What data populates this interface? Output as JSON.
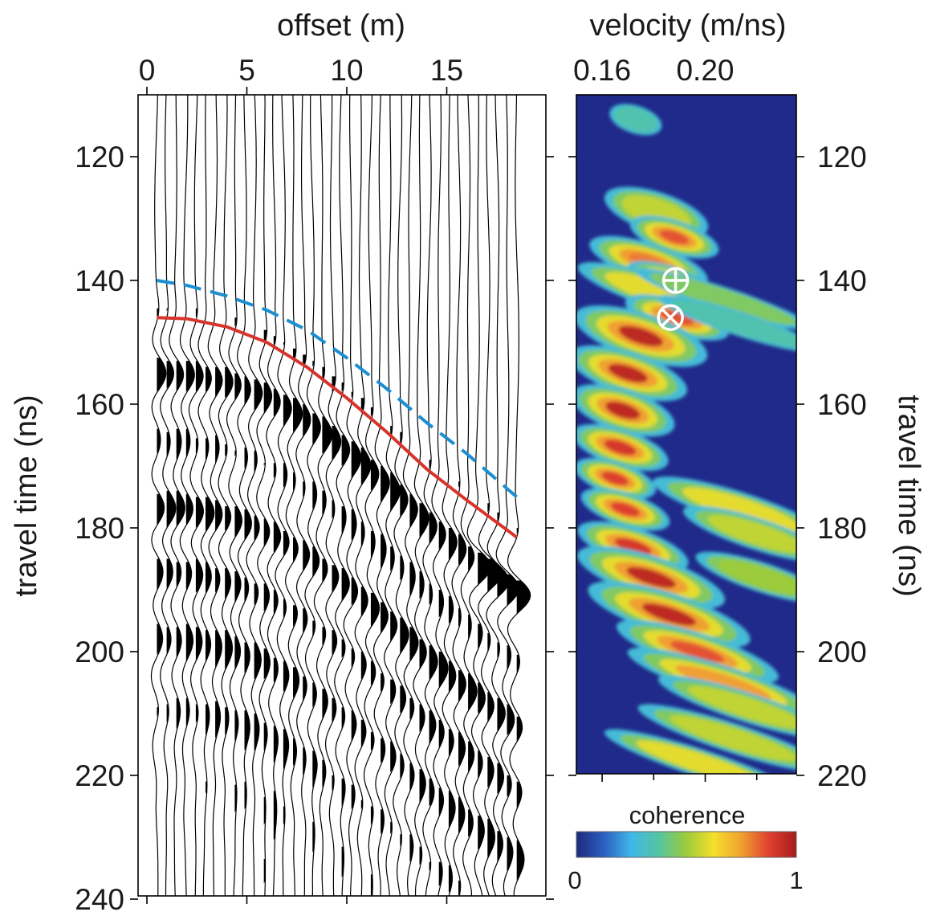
{
  "chart_data": [
    {
      "type": "line",
      "subtype": "wiggle-seismogram",
      "xlabel": "offset (m)",
      "ylabel": "travel time (ns)",
      "xlim": [
        0,
        20
      ],
      "ylim": [
        110,
        240
      ],
      "y_inverted": true,
      "x_ticks": [
        0,
        5,
        10,
        15
      ],
      "y_ticks": [
        120,
        140,
        160,
        180,
        200,
        220,
        240
      ],
      "trace_count": 38,
      "trace_offset_range": [
        0.5,
        18.5
      ],
      "positive_fill": "black",
      "series": [
        {
          "name": "",
          "color": "#d6342c",
          "dash": "solid",
          "x": [
            0.5,
            2,
            4,
            6,
            8,
            10,
            12,
            14,
            16,
            18.5
          ],
          "y": [
            146,
            146.2,
            147.5,
            150,
            154,
            159,
            164.5,
            170.5,
            175.5,
            181.5
          ]
        },
        {
          "name": "",
          "color": "#1c8fd1",
          "dash": "dashed",
          "x": [
            0.5,
            2,
            4,
            6,
            8,
            10,
            12,
            14,
            16,
            18.5
          ],
          "y": [
            140,
            140.8,
            142.5,
            144.8,
            148,
            152.5,
            157.5,
            163,
            168,
            175
          ]
        }
      ]
    },
    {
      "type": "heatmap",
      "xlabel": "velocity (m/ns)",
      "ylabel": "travel time (ns)",
      "xlim": [
        0.15,
        0.235
      ],
      "ylim": [
        110,
        220
      ],
      "y_inverted": true,
      "x_ticks": [
        0.16,
        0.2
      ],
      "x_tick_labels": [
        "0.16",
        "0.20"
      ],
      "y_ticks": [
        120,
        140,
        160,
        180,
        200,
        220
      ],
      "colorbar": {
        "label": "coherence",
        "min": "0",
        "max": "1",
        "colors": [
          "#1c2a7d",
          "#2c5fc0",
          "#3fb8e8",
          "#55c4a0",
          "#9ccc3a",
          "#f5e02a",
          "#f0a030",
          "#e04030",
          "#a51c1c"
        ]
      },
      "background": "#1f2a8a",
      "blobs": [
        {
          "t": 114,
          "v": 0.173,
          "w": 0.007,
          "h": 1.5,
          "c": 0.35
        },
        {
          "t": 129,
          "v": 0.181,
          "w": 0.014,
          "h": 2.2,
          "c": 0.55
        },
        {
          "t": 133,
          "v": 0.188,
          "w": 0.012,
          "h": 1.8,
          "c": 0.85
        },
        {
          "t": 137,
          "v": 0.178,
          "w": 0.016,
          "h": 2.0,
          "c": 0.8
        },
        {
          "t": 140,
          "v": 0.187,
          "w": 0.012,
          "h": 1.5,
          "c": 0.8
        },
        {
          "t": 142,
          "v": 0.182,
          "w": 0.022,
          "h": 1.8,
          "c": 0.6
        },
        {
          "t": 143,
          "v": 0.207,
          "w": 0.024,
          "h": 1.3,
          "c": 0.45
        },
        {
          "t": 146,
          "v": 0.189,
          "w": 0.014,
          "h": 1.8,
          "c": 0.85
        },
        {
          "t": 147,
          "v": 0.213,
          "w": 0.022,
          "h": 1.3,
          "c": 0.35
        },
        {
          "t": 149,
          "v": 0.175,
          "w": 0.018,
          "h": 2.5,
          "c": 0.95
        },
        {
          "t": 155,
          "v": 0.17,
          "w": 0.016,
          "h": 2.3,
          "c": 0.95
        },
        {
          "t": 161,
          "v": 0.168,
          "w": 0.014,
          "h": 2.3,
          "c": 0.95
        },
        {
          "t": 167,
          "v": 0.167,
          "w": 0.013,
          "h": 2.0,
          "c": 0.9
        },
        {
          "t": 172,
          "v": 0.165,
          "w": 0.011,
          "h": 1.8,
          "c": 0.88
        },
        {
          "t": 177,
          "v": 0.169,
          "w": 0.012,
          "h": 1.8,
          "c": 0.88
        },
        {
          "t": 177,
          "v": 0.214,
          "w": 0.024,
          "h": 1.8,
          "c": 0.6
        },
        {
          "t": 181,
          "v": 0.22,
          "w": 0.02,
          "h": 1.7,
          "c": 0.55
        },
        {
          "t": 183,
          "v": 0.172,
          "w": 0.015,
          "h": 2.0,
          "c": 0.9
        },
        {
          "t": 188,
          "v": 0.179,
          "w": 0.02,
          "h": 2.3,
          "c": 0.95
        },
        {
          "t": 188,
          "v": 0.222,
          "w": 0.018,
          "h": 1.6,
          "c": 0.5
        },
        {
          "t": 194,
          "v": 0.186,
          "w": 0.022,
          "h": 2.3,
          "c": 0.95
        },
        {
          "t": 200,
          "v": 0.197,
          "w": 0.022,
          "h": 2.0,
          "c": 0.85
        },
        {
          "t": 205,
          "v": 0.207,
          "w": 0.026,
          "h": 1.8,
          "c": 0.75
        },
        {
          "t": 209,
          "v": 0.216,
          "w": 0.024,
          "h": 1.6,
          "c": 0.55
        },
        {
          "t": 214,
          "v": 0.211,
          "w": 0.026,
          "h": 1.6,
          "c": 0.55
        },
        {
          "t": 218,
          "v": 0.198,
          "w": 0.026,
          "h": 1.5,
          "c": 0.6
        }
      ],
      "markers": [
        {
          "symbol": "circle-plus",
          "v": 0.1885,
          "t": 140
        },
        {
          "symbol": "circle-times",
          "v": 0.1865,
          "t": 146
        }
      ]
    }
  ]
}
